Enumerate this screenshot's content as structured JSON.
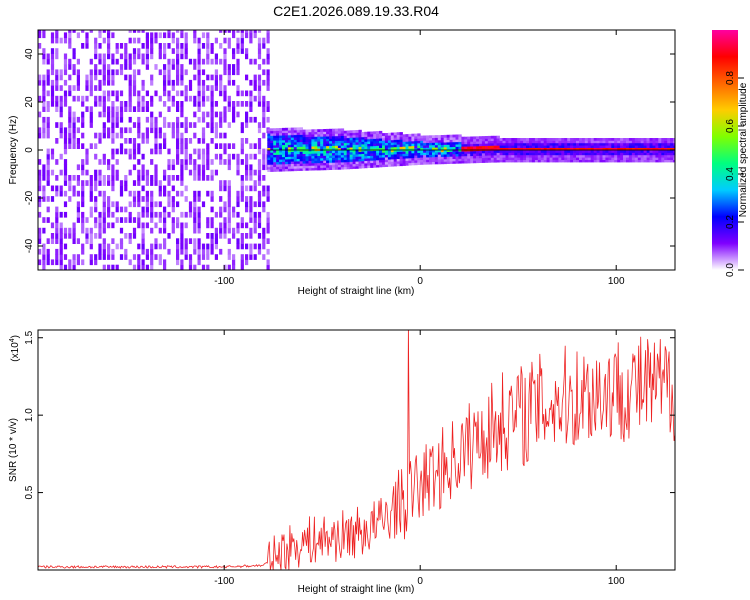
{
  "title": "C2E1.2026.089.19.33.R04",
  "chart_data": [
    {
      "type": "heatmap",
      "name": "spectrogram",
      "xlabel": "Height of straight line (km)",
      "ylabel": "Frequency (Hz)",
      "xlim": [
        -195,
        130
      ],
      "ylim": [
        -50,
        50
      ],
      "xticks": [
        -100,
        0,
        100
      ],
      "xtick_labels": [
        "-100",
        "0",
        "100"
      ],
      "yticks": [
        -40,
        -20,
        0,
        20,
        40
      ],
      "ytick_labels": [
        "-40",
        "-20",
        "0",
        "20",
        "40"
      ],
      "noise_region_x": [
        -195,
        -78
      ],
      "signal_band": {
        "x_start": -78,
        "center_hz": 0,
        "x_points": [
          -78,
          -60,
          -40,
          -20,
          0,
          20,
          40,
          80,
          130
        ],
        "half_width_hz": [
          6,
          5.5,
          5,
          4,
          3,
          2.5,
          2,
          2,
          2
        ]
      },
      "colorbar": {
        "label": "Normalized spectral amplitude",
        "range": [
          0,
          1
        ],
        "ticks": [
          0.0,
          0.2,
          0.4,
          0.6,
          0.8
        ],
        "tick_labels": [
          "0.0",
          "0.2",
          "0.4",
          "0.6",
          "0.8"
        ],
        "colors": [
          "#ffffff",
          "#7f00ff",
          "#0000ff",
          "#00ccff",
          "#00ff80",
          "#80ff00",
          "#ffcc00",
          "#ff6600",
          "#ff0000",
          "#ff00a0"
        ]
      }
    },
    {
      "type": "line",
      "name": "snr",
      "xlabel": "Height of straight line (km)",
      "ylabel": "SNR (10 * v/v)",
      "y_scale_label": "(x10",
      "y_scale_exponent": "4",
      "y_scale_suffix": ")",
      "xlim": [
        -195,
        130
      ],
      "ylim": [
        0,
        1.55
      ],
      "xticks": [
        -100,
        0,
        100
      ],
      "xtick_labels": [
        "-100",
        "0",
        "100"
      ],
      "yticks": [
        0.5,
        1.0,
        1.5
      ],
      "ytick_labels": [
        "0.5",
        "1.0",
        "1.5"
      ],
      "color": "#ee2222",
      "series": [
        {
          "name": "SNR",
          "x": [
            -195,
            -150,
            -100,
            -80,
            -75,
            -70,
            -60,
            -50,
            -40,
            -30,
            -20,
            -15,
            -10,
            -8,
            -5,
            0,
            5,
            10,
            15,
            20,
            30,
            40,
            50,
            55,
            60,
            70,
            80,
            90,
            100,
            110,
            120,
            130
          ],
          "y": [
            0.02,
            0.02,
            0.02,
            0.03,
            0.08,
            0.13,
            0.18,
            0.2,
            0.22,
            0.25,
            0.3,
            0.38,
            0.45,
            0.4,
            0.5,
            0.55,
            0.6,
            0.65,
            0.7,
            0.75,
            0.85,
            0.95,
            1.0,
            1.02,
            1.05,
            1.1,
            1.12,
            1.15,
            1.17,
            1.18,
            1.17,
            1.18
          ],
          "spike": {
            "x": -6,
            "y": 1.6
          }
        }
      ]
    }
  ]
}
